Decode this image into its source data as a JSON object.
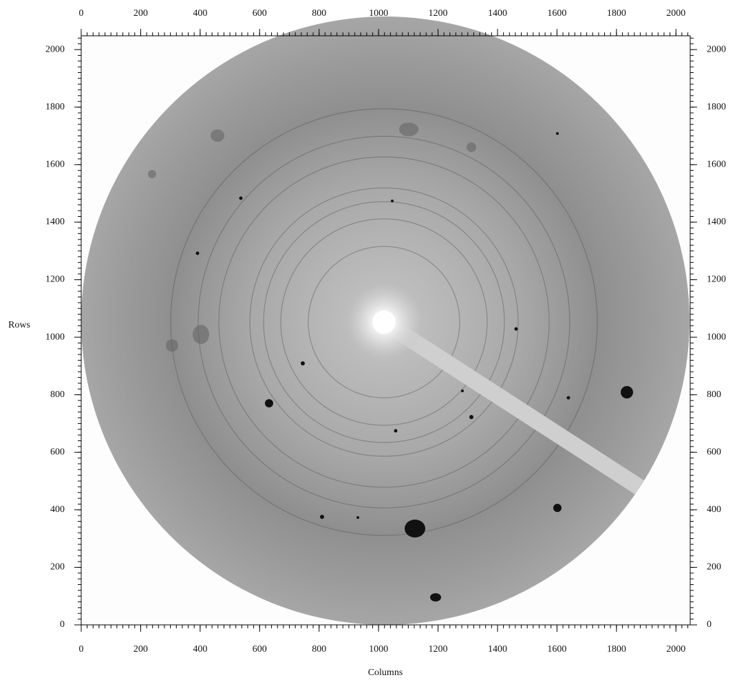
{
  "chart_data": {
    "type": "image",
    "xlabel": "Columns",
    "ylabel": "Rows",
    "xlim": [
      0,
      2048
    ],
    "ylim": [
      0,
      2048
    ],
    "xticks": [
      0,
      200,
      400,
      600,
      800,
      1000,
      1200,
      1400,
      1600,
      1800,
      2000
    ],
    "yticks": [
      0,
      200,
      400,
      600,
      800,
      1000,
      1200,
      1400,
      1600,
      1800,
      2000
    ]
  }
}
